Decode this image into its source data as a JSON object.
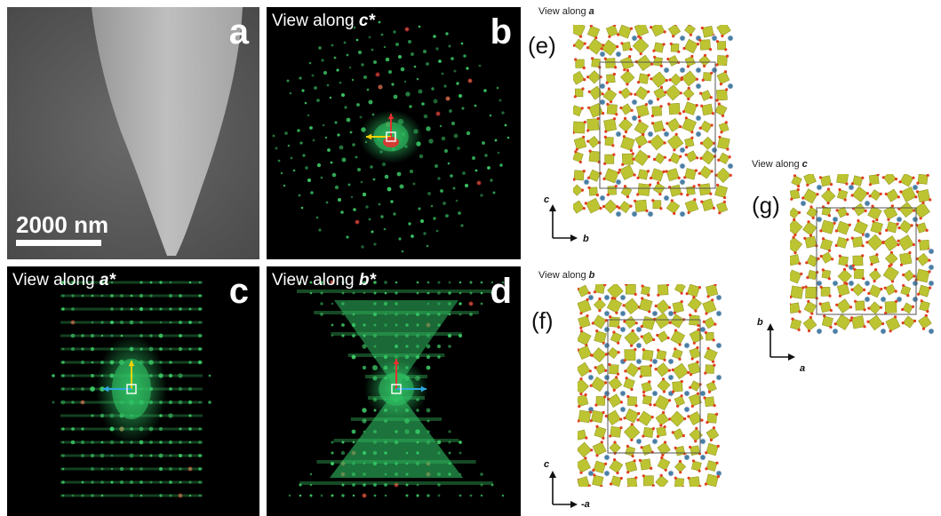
{
  "panels": {
    "a": {
      "letter": "a",
      "scale_bar": "2000 nm"
    },
    "b": {
      "letter": "b",
      "view_prefix": "View along ",
      "view_axis": "c*"
    },
    "c": {
      "letter": "c",
      "view_prefix": "View along ",
      "view_axis": "a*"
    },
    "d": {
      "letter": "d",
      "view_prefix": "View along ",
      "view_axis": "b*"
    }
  },
  "structures": {
    "e": {
      "label": "(e)",
      "view_prefix": "View along ",
      "view_axis": "a",
      "axis_vertical": "c",
      "axis_horizontal": "b"
    },
    "f": {
      "label": "(f)",
      "view_prefix": "View along ",
      "view_axis": "b",
      "axis_vertical": "c",
      "axis_horizontal": "-a"
    },
    "g": {
      "label": "(g)",
      "view_prefix": "View along ",
      "view_axis": "c",
      "axis_vertical": "b",
      "axis_horizontal": "a"
    }
  },
  "colors": {
    "diffraction_spot": "#3fd36b",
    "diffraction_halo": "#2fbf63",
    "red_arrow": "#e53030",
    "yellow_arrow": "#f5d000",
    "blue_arrow": "#2fa8e0",
    "polyhedra": "#b8c020",
    "cation": "#4a7fa5",
    "oxygen": "#e04020"
  }
}
